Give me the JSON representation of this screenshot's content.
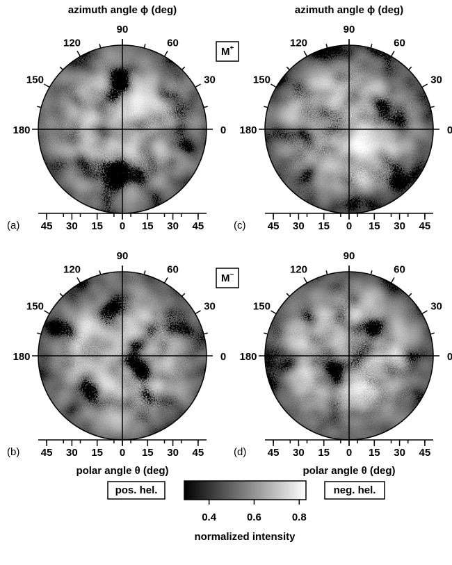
{
  "column_titles_top": [
    "azimuth angle ϕ  (deg)",
    "azimuth angle ϕ  (deg)"
  ],
  "column_titles_bottom": [
    "polar angle θ  (deg)",
    "polar angle θ  (deg)"
  ],
  "row_labels": [
    {
      "base": "M",
      "sup": "+"
    },
    {
      "base": "M",
      "sup": "−"
    }
  ],
  "panels": [
    {
      "label": "(a)"
    },
    {
      "label": "(c)"
    },
    {
      "label": "(b)"
    },
    {
      "label": "(d)"
    }
  ],
  "azimuth_ticks": [
    0,
    30,
    60,
    90,
    120,
    150,
    180
  ],
  "polar_lim": [
    -50,
    50
  ],
  "polar_ticks": [
    {
      "value": -45,
      "label": "45"
    },
    {
      "value": -30,
      "label": "30"
    },
    {
      "value": -15,
      "label": "15"
    },
    0,
    15,
    30,
    45
  ],
  "colorbar": {
    "lim": [
      0.29,
      0.83
    ],
    "ticks": [
      0.4,
      0.6,
      0.8
    ],
    "label": "normalized intensity",
    "left_label": "pos. hel.",
    "right_label": "neg. hel."
  }
}
